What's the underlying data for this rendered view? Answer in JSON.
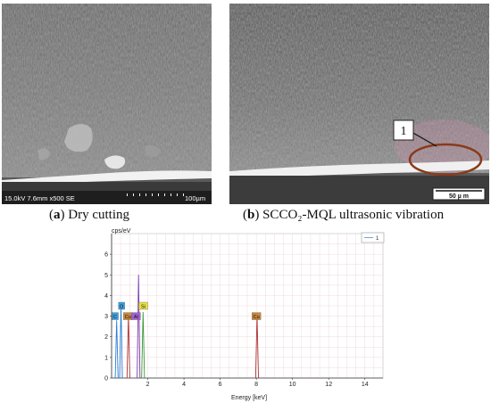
{
  "panel_a": {
    "info_bar": "15.0kV 7.6mm x500 SE",
    "scale_label": "100µm",
    "caption_letter": "a",
    "caption_text": " Dry cutting"
  },
  "panel_b": {
    "marker_label": "1",
    "scale_label": "50 µ m",
    "caption_letter": "b",
    "caption_text": " SCCO₂-MQL ultrasonic vibration"
  },
  "chart_data": {
    "type": "line",
    "title": "",
    "xlabel": "Energy [keV]",
    "ylabel": "cps/eV",
    "xlim": [
      0,
      15
    ],
    "ylim": [
      0,
      7
    ],
    "x_ticks": [
      2,
      4,
      6,
      8,
      10,
      12,
      14
    ],
    "y_ticks": [
      0,
      1,
      2,
      3,
      4,
      5,
      6
    ],
    "grid": true,
    "legend": {
      "position": "top-right",
      "entries": [
        "1"
      ]
    },
    "peaks": [
      {
        "label": "C",
        "energy": 0.28,
        "height": 2.8,
        "color": "#2a7fd4"
      },
      {
        "label": "O",
        "energy": 0.52,
        "height": 3.5,
        "color": "#2a7fd4"
      },
      {
        "label": "Cu",
        "energy": 0.93,
        "height": 3.0,
        "color": "#b03030"
      },
      {
        "label": "Al",
        "energy": 1.49,
        "height": 5.0,
        "color": "#7a3fb0"
      },
      {
        "label": "Si",
        "energy": 1.74,
        "height": 3.2,
        "color": "#3a9a3a"
      },
      {
        "label": "Cu",
        "energy": 8.04,
        "height": 3.0,
        "color": "#b03030"
      }
    ],
    "tags": [
      {
        "text": "C",
        "energy": 0.2,
        "y": 3.0,
        "color": "#3aa0e0"
      },
      {
        "text": "O",
        "energy": 0.55,
        "y": 3.5,
        "color": "#3aa0e0"
      },
      {
        "text": "Cu",
        "energy": 0.9,
        "y": 3.0,
        "color": "#c8863a"
      },
      {
        "text": "Al",
        "energy": 1.35,
        "y": 3.0,
        "color": "#a060d0"
      },
      {
        "text": "Si",
        "energy": 1.75,
        "y": 3.5,
        "color": "#e6e040"
      },
      {
        "text": "Cu",
        "energy": 8.0,
        "y": 3.0,
        "color": "#c8863a"
      }
    ]
  }
}
